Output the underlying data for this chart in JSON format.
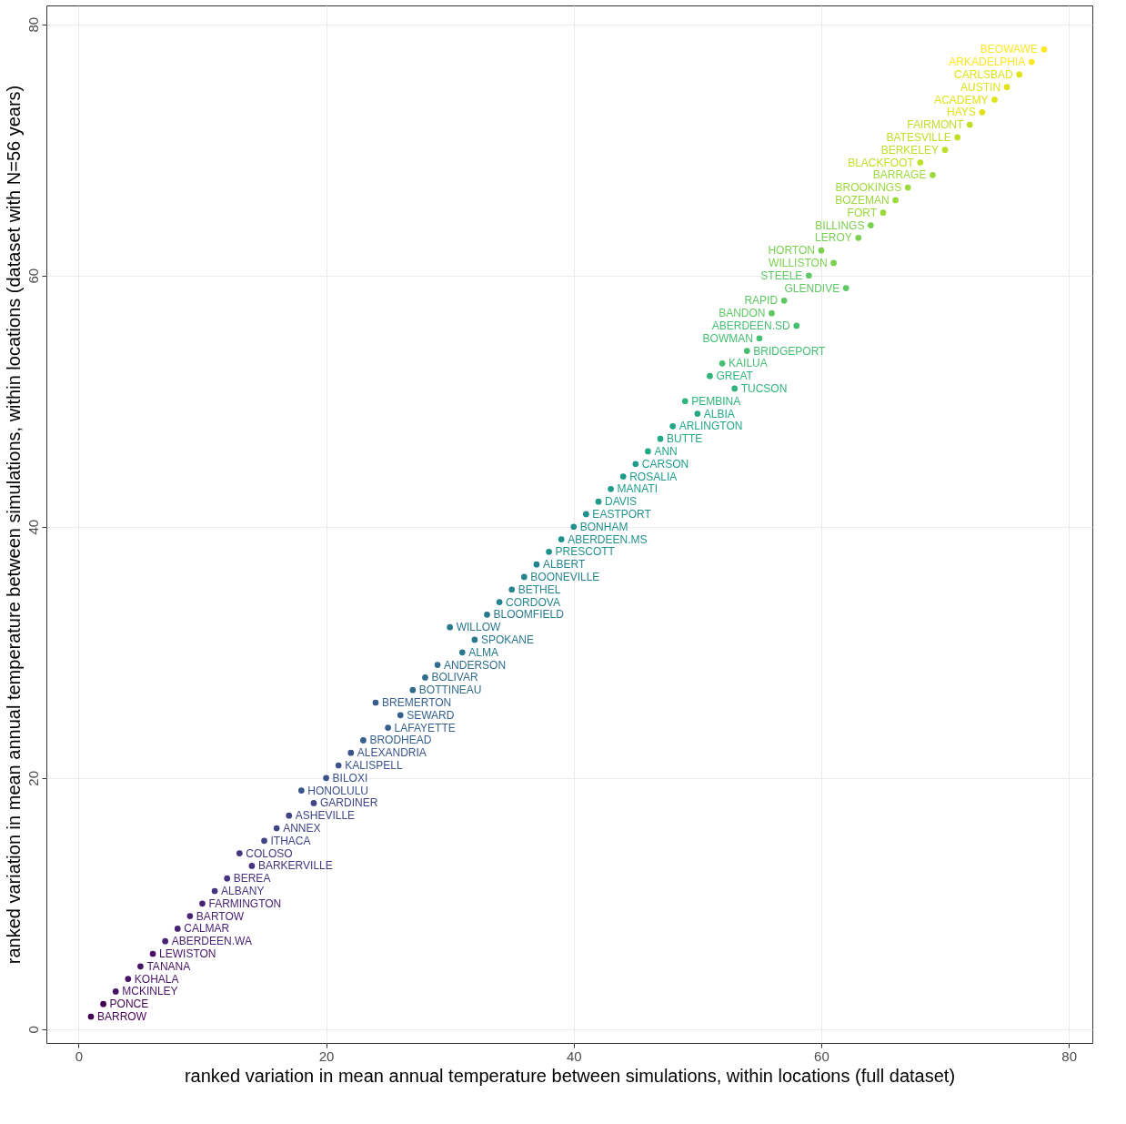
{
  "chart_data": {
    "type": "scatter",
    "xlabel": "ranked variation in mean annual temperature between simulations, within locations (full dataset)",
    "ylabel": "ranked variation in mean annual temperature between simulations, within locations (dataset with N=56 years)",
    "x": [
      1,
      2,
      3,
      4,
      5,
      6,
      7,
      8,
      9,
      10,
      11,
      12,
      13,
      14,
      15,
      16,
      17,
      18,
      19,
      20,
      21,
      22,
      23,
      24,
      25,
      26,
      27,
      28,
      29,
      30,
      31,
      32,
      33,
      34,
      35,
      36,
      37,
      38,
      39,
      40,
      41,
      42,
      43,
      44,
      45,
      46,
      47,
      48,
      49,
      50,
      51,
      52,
      53,
      54,
      55,
      56,
      57,
      58,
      59,
      60,
      61,
      62,
      63,
      64,
      65,
      66,
      67,
      68,
      69,
      70,
      71,
      72,
      73,
      74,
      75,
      76,
      77,
      78
    ],
    "values": [
      1,
      2,
      3,
      4,
      5,
      6,
      7,
      8,
      9,
      10,
      11,
      12,
      14,
      13,
      15,
      16,
      17,
      19,
      18,
      20,
      21,
      22,
      23,
      26,
      24,
      25,
      27,
      28,
      29,
      32,
      30,
      31,
      33,
      34,
      35,
      36,
      37,
      38,
      39,
      40,
      41,
      42,
      43,
      44,
      45,
      46,
      47,
      48,
      50,
      49,
      52,
      53,
      51,
      54,
      55,
      57,
      58,
      56,
      60,
      62,
      61,
      59,
      63,
      64,
      65,
      66,
      67,
      69,
      68,
      70,
      71,
      72,
      73,
      74,
      75,
      76,
      77,
      78
    ],
    "colors": [
      "#440154",
      "#440154",
      "#471365",
      "#471365",
      "#471365",
      "#471365",
      "#482475",
      "#482475",
      "#482475",
      "#482475",
      "#463480",
      "#463480",
      "#463480",
      "#463480",
      "#414487",
      "#414487",
      "#414487",
      "#3b528b",
      "#414487",
      "#3b528b",
      "#3b528b",
      "#3b528b",
      "#355f8d",
      "#355f8d",
      "#355f8d",
      "#355f8d",
      "#2f6c8e",
      "#2f6c8e",
      "#2f6c8e",
      "#2a788e",
      "#2a788e",
      "#2a788e",
      "#2a788e",
      "#25848e",
      "#25848e",
      "#25848e",
      "#25848e",
      "#21918c",
      "#21918c",
      "#21918c",
      "#21918c",
      "#1e9c89",
      "#1e9c89",
      "#1e9c89",
      "#1e9c89",
      "#22a884",
      "#22a884",
      "#22a884",
      "#2fb47c",
      "#22a884",
      "#2fb47c",
      "#44bf70",
      "#2fb47c",
      "#44bf70",
      "#44bf70",
      "#5ec962",
      "#5ec962",
      "#44bf70",
      "#5ec962",
      "#7ad151",
      "#7ad151",
      "#5ec962",
      "#7ad151",
      "#7ad151",
      "#9bd93c",
      "#9bd93c",
      "#9bd93c",
      "#bddf26",
      "#9bd93c",
      "#bddf26",
      "#bddf26",
      "#bddf26",
      "#dfe318",
      "#dfe318",
      "#dfe318",
      "#dfe318",
      "#fde725",
      "#fde725"
    ],
    "xlim": [
      -2.6,
      81.9
    ],
    "ylim": [
      -1.1,
      81.5
    ],
    "xticks": [
      0,
      20,
      40,
      60,
      80
    ],
    "yticks": [
      0,
      20,
      40,
      60,
      80
    ],
    "grid": true,
    "marker": "circle",
    "annotations": [
      {
        "text": "BARROW",
        "x": 1,
        "y": 1
      },
      {
        "text": "PONCE",
        "x": 2,
        "y": 2
      },
      {
        "text": "MCKINLEY",
        "x": 3,
        "y": 3
      },
      {
        "text": "KOHALA",
        "x": 4,
        "y": 4
      },
      {
        "text": "TANANA",
        "x": 5,
        "y": 5
      },
      {
        "text": "LEWISTON",
        "x": 6,
        "y": 6
      },
      {
        "text": "ABERDEEN.WA",
        "x": 7,
        "y": 7
      },
      {
        "text": "CALMAR",
        "x": 8,
        "y": 8
      },
      {
        "text": "BARTOW",
        "x": 9,
        "y": 9
      },
      {
        "text": "FARMINGTON",
        "x": 10,
        "y": 10
      },
      {
        "text": "ALBANY",
        "x": 11,
        "y": 11
      },
      {
        "text": "BEREA",
        "x": 12,
        "y": 12
      },
      {
        "text": "COLOSO",
        "x": 13,
        "y": 14
      },
      {
        "text": "BARKERVILLE",
        "x": 14,
        "y": 13
      },
      {
        "text": "ITHACA",
        "x": 15,
        "y": 15
      },
      {
        "text": "ANNEX",
        "x": 16,
        "y": 16
      },
      {
        "text": "ASHEVILLE",
        "x": 17,
        "y": 17
      },
      {
        "text": "HONOLULU",
        "x": 18,
        "y": 19
      },
      {
        "text": "GARDINER",
        "x": 19,
        "y": 18
      },
      {
        "text": "BILOXI",
        "x": 20,
        "y": 20
      },
      {
        "text": "KALISPELL",
        "x": 21,
        "y": 21
      },
      {
        "text": "ALEXANDRIA",
        "x": 22,
        "y": 22
      },
      {
        "text": "BRODHEAD",
        "x": 23,
        "y": 23
      },
      {
        "text": "BREMERTON",
        "x": 24,
        "y": 26
      },
      {
        "text": "LAFAYETTE",
        "x": 25,
        "y": 24
      },
      {
        "text": "SEWARD",
        "x": 26,
        "y": 25
      },
      {
        "text": "BOTTINEAU",
        "x": 27,
        "y": 27
      },
      {
        "text": "BOLIVAR",
        "x": 28,
        "y": 28
      },
      {
        "text": "ANDERSON",
        "x": 29,
        "y": 29
      },
      {
        "text": "WILLOW",
        "x": 30,
        "y": 32
      },
      {
        "text": "ALMA",
        "x": 31,
        "y": 30
      },
      {
        "text": "SPOKANE",
        "x": 32,
        "y": 31
      },
      {
        "text": "BLOOMFIELD",
        "x": 33,
        "y": 33
      },
      {
        "text": "CORDOVA",
        "x": 34,
        "y": 34
      },
      {
        "text": "BETHEL",
        "x": 35,
        "y": 35
      },
      {
        "text": "BOONEVILLE",
        "x": 36,
        "y": 36
      },
      {
        "text": "ALBERT",
        "x": 37,
        "y": 37
      },
      {
        "text": "PRESCOTT",
        "x": 38,
        "y": 38
      },
      {
        "text": "ABERDEEN.MS",
        "x": 39,
        "y": 39
      },
      {
        "text": "BONHAM",
        "x": 40,
        "y": 40
      },
      {
        "text": "EASTPORT",
        "x": 41,
        "y": 41
      },
      {
        "text": "DAVIS",
        "x": 42,
        "y": 42
      },
      {
        "text": "MANATI",
        "x": 43,
        "y": 43
      },
      {
        "text": "ROSALIA",
        "x": 44,
        "y": 44
      },
      {
        "text": "CARSON",
        "x": 45,
        "y": 45
      },
      {
        "text": "ANN",
        "x": 46,
        "y": 46
      },
      {
        "text": "BUTTE",
        "x": 47,
        "y": 47
      },
      {
        "text": "ARLINGTON",
        "x": 48,
        "y": 48
      },
      {
        "text": "PEMBINA",
        "x": 49,
        "y": 50
      },
      {
        "text": "ALBIA",
        "x": 50,
        "y": 49
      },
      {
        "text": "GREAT",
        "x": 51,
        "y": 52
      },
      {
        "text": "KAILUA",
        "x": 52,
        "y": 53
      },
      {
        "text": "TUCSON",
        "x": 53,
        "y": 51
      },
      {
        "text": "BRIDGEPORT",
        "x": 54,
        "y": 54
      },
      {
        "text": "BOWMAN",
        "x": 55,
        "y": 55
      },
      {
        "text": "BANDON",
        "x": 56,
        "y": 57
      },
      {
        "text": "RAPID",
        "x": 57,
        "y": 58
      },
      {
        "text": "ABERDEEN.SD",
        "x": 58,
        "y": 56
      },
      {
        "text": "STEELE",
        "x": 59,
        "y": 60
      },
      {
        "text": "HORTON",
        "x": 60,
        "y": 62
      },
      {
        "text": "WILLISTON",
        "x": 61,
        "y": 61
      },
      {
        "text": "GLENDIVE",
        "x": 62,
        "y": 59
      },
      {
        "text": "LEROY",
        "x": 63,
        "y": 63
      },
      {
        "text": "BILLINGS",
        "x": 64,
        "y": 64
      },
      {
        "text": "FORT",
        "x": 65,
        "y": 65
      },
      {
        "text": "BOZEMAN",
        "x": 66,
        "y": 66
      },
      {
        "text": "BROOKINGS",
        "x": 67,
        "y": 67
      },
      {
        "text": "BLACKFOOT",
        "x": 68,
        "y": 69
      },
      {
        "text": "BARRAGE",
        "x": 69,
        "y": 68
      },
      {
        "text": "BERKELEY",
        "x": 70,
        "y": 70
      },
      {
        "text": "BATESVILLE",
        "x": 71,
        "y": 71
      },
      {
        "text": "FAIRMONT",
        "x": 72,
        "y": 72
      },
      {
        "text": "HAYS",
        "x": 73,
        "y": 73
      },
      {
        "text": "ACADEMY",
        "x": 74,
        "y": 74
      },
      {
        "text": "AUSTIN",
        "x": 75,
        "y": 75
      },
      {
        "text": "CARLSBAD",
        "x": 76,
        "y": 76
      },
      {
        "text": "ARKADELPHIA",
        "x": 77,
        "y": 77
      },
      {
        "text": "BEOWAWE",
        "x": 78,
        "y": 78
      }
    ]
  }
}
